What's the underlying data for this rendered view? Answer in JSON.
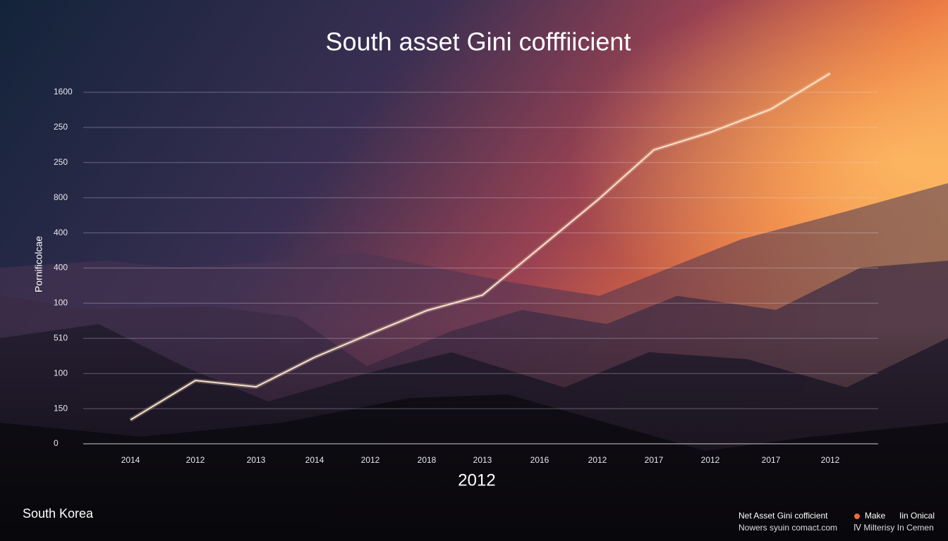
{
  "chart_data": {
    "type": "line",
    "title": "South asset Gini cofffiicient",
    "x_label": "2012",
    "y_label": "Pornificolcae",
    "categories": [
      "2014",
      "2012",
      "2013",
      "2014",
      "2012",
      "2018",
      "2013",
      "2016",
      "2012",
      "2017",
      "2012",
      "2017",
      "2012"
    ],
    "series": [
      {
        "name": "Net Asset Gini cofficient",
        "color": "#fbe3c8",
        "values": [
          0.68,
          1.8,
          1.62,
          2.46,
          3.13,
          3.79,
          4.23,
          5.57,
          6.93,
          8.36,
          8.86,
          9.52,
          10.54
        ]
      }
    ],
    "ylim": [
      0,
      10
    ],
    "yticks": [
      {
        "value": 0,
        "label": "0"
      },
      {
        "value": 1,
        "label": "150"
      },
      {
        "value": 2,
        "label": "100"
      },
      {
        "value": 3,
        "label": "510"
      },
      {
        "value": 4,
        "label": "100"
      },
      {
        "value": 5,
        "label": "400"
      },
      {
        "value": 6,
        "label": "400"
      },
      {
        "value": 7,
        "label": "800"
      },
      {
        "value": 8,
        "label": "250"
      },
      {
        "value": 9,
        "label": "250"
      },
      {
        "value": 10,
        "label": "1600"
      }
    ],
    "grid": true,
    "footer_left": "South Korea",
    "legend": {
      "items": [
        "Make",
        "Iin Onical"
      ],
      "color": "#f06a3c",
      "row2": [
        "Nowers syuin comact.com",
        "Ⅳ Milterisy In Cemen"
      ]
    }
  }
}
